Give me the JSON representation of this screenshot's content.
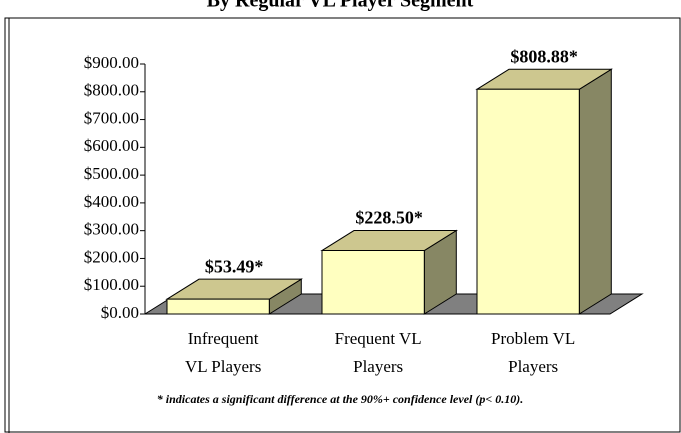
{
  "chart_data": {
    "type": "bar3d",
    "title": "By Regular VL Player Segment",
    "categories": [
      [
        "Infrequent",
        "VL Players"
      ],
      [
        "Frequent VL",
        "Players"
      ],
      [
        "Problem VL",
        "Players"
      ]
    ],
    "values": [
      53.49,
      228.5,
      808.88
    ],
    "value_labels": [
      "$53.49*",
      "$228.50*",
      "$808.88*"
    ],
    "colors": {
      "front": "#ffffc0",
      "top": "#cdc78f",
      "side": "#878764",
      "floor": "#808080"
    },
    "ylim": [
      0,
      900
    ],
    "yticks": [
      {
        "value": 0,
        "label": "$0.00"
      },
      {
        "value": 100,
        "label": "$100.00"
      },
      {
        "value": 200,
        "label": "$200.00"
      },
      {
        "value": 300,
        "label": "$300.00"
      },
      {
        "value": 400,
        "label": "$400.00"
      },
      {
        "value": 500,
        "label": "$500.00"
      },
      {
        "value": 600,
        "label": "$600.00"
      },
      {
        "value": 700,
        "label": "$700.00"
      },
      {
        "value": 800,
        "label": "$800.00"
      },
      {
        "value": 900,
        "label": "$900.00"
      }
    ],
    "footnote": "* indicates a significant difference at the 90%+ confidence level (p< 0.10)."
  }
}
